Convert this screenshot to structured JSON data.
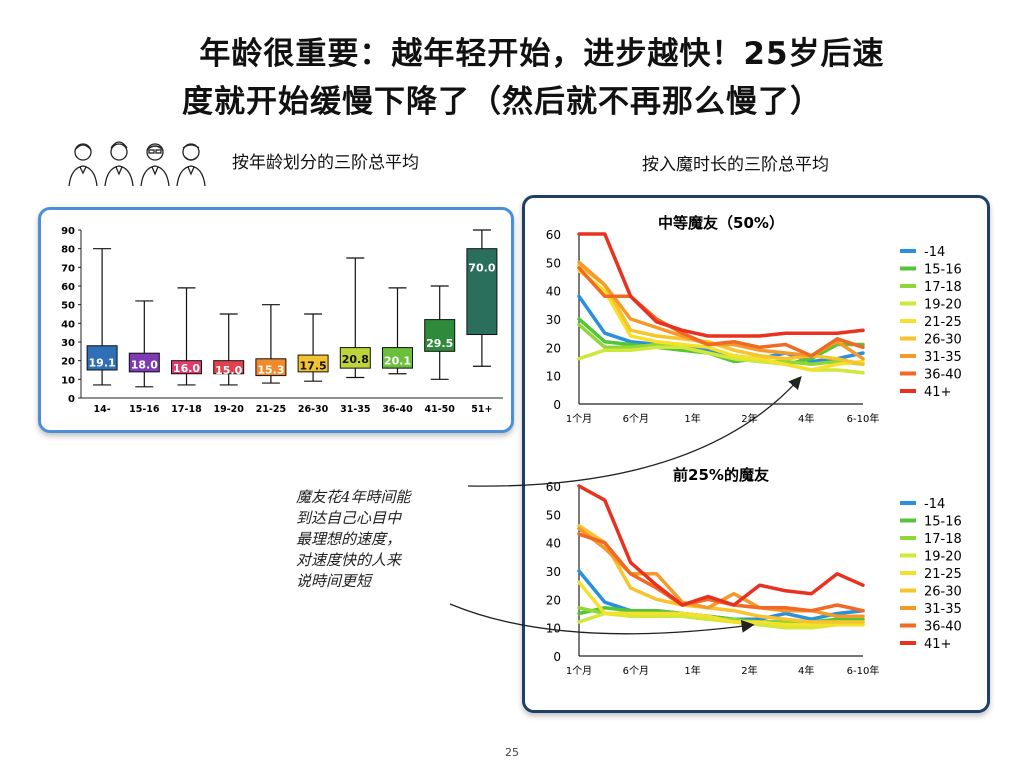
{
  "title": {
    "line1": "年龄很重要：越年轻开始，进步越快！25岁后速",
    "line2": "度就开始缓慢下降了（然后就不再那么慢了）"
  },
  "left_heading": "按年龄划分的三阶总平均",
  "right_heading": "按入魔时长的三阶总平均",
  "annotation": {
    "lines": [
      "魔友花4年時间能",
      "到达自己心目中",
      "最理想的速度，",
      "对速度快的人来",
      "说時间更短"
    ]
  },
  "page_number": "25",
  "chart_data": [
    {
      "type": "box",
      "title": "",
      "categories": [
        "14-",
        "15-16",
        "17-18",
        "19-20",
        "21-25",
        "26-30",
        "31-35",
        "36-40",
        "41-50",
        "51+"
      ],
      "means": [
        19.1,
        18.0,
        16.0,
        15.0,
        15.3,
        17.5,
        20.8,
        20.1,
        29.5,
        70.0
      ],
      "mean_labels": [
        "19.1",
        "18.0",
        "16.0",
        "15.0",
        "15.3",
        "17.5",
        "20.8",
        "20.1",
        "29.5",
        "70.0"
      ],
      "whisker_low": [
        7,
        6,
        7,
        7,
        8,
        9,
        11,
        13,
        10,
        17
      ],
      "box_low": [
        15,
        14,
        13,
        13,
        12,
        14,
        16,
        16,
        25,
        34
      ],
      "box_high": [
        28,
        24,
        20,
        20,
        21,
        23,
        27,
        27,
        42,
        80
      ],
      "whisker_high": [
        80,
        52,
        59,
        45,
        50,
        45,
        75,
        59,
        60,
        90
      ],
      "box_colors": [
        "#2f6fb5",
        "#7e3bb3",
        "#e23b6b",
        "#e2414d",
        "#f08a2a",
        "#f2c230",
        "#bdd43a",
        "#6cbf3a",
        "#2e8b3a",
        "#2a6e5c"
      ],
      "ylim": [
        0,
        90
      ],
      "yticks": [
        0,
        10,
        20,
        30,
        40,
        50,
        60,
        70,
        80,
        90
      ],
      "grid": false
    },
    {
      "type": "line",
      "title": "中等魔友（50%）",
      "x_tick_labels": [
        "1个月",
        "6个月",
        "1年",
        "2年",
        "4年",
        "6-10年"
      ],
      "ylim": [
        0,
        60
      ],
      "yticks": [
        0,
        10,
        20,
        30,
        40,
        50,
        60
      ],
      "legend": "right",
      "series": [
        {
          "name": "-14",
          "color": "#2b8fe0",
          "values": [
            38,
            25,
            22,
            21,
            20,
            19,
            17,
            16,
            18,
            15,
            16,
            18
          ]
        },
        {
          "name": "15-16",
          "color": "#55c43a",
          "values": [
            30,
            22,
            21,
            20,
            19,
            18,
            15,
            16,
            14,
            16,
            21,
            21
          ]
        },
        {
          "name": "17-18",
          "color": "#8fd637",
          "values": [
            28,
            20,
            20,
            21,
            20,
            18,
            16,
            15,
            15,
            14,
            15,
            14
          ]
        },
        {
          "name": "19-20",
          "color": "#cfe83a",
          "values": [
            16,
            19,
            19,
            20,
            20,
            18,
            16,
            15,
            14,
            12,
            12,
            11
          ]
        },
        {
          "name": "21-25",
          "color": "#f7e02a",
          "values": [
            47,
            40,
            24,
            22,
            21,
            20,
            17,
            16,
            14,
            12,
            14,
            15
          ]
        },
        {
          "name": "26-30",
          "color": "#f8c32c",
          "values": [
            49,
            42,
            26,
            24,
            23,
            22,
            19,
            17,
            16,
            17,
            16,
            14
          ]
        },
        {
          "name": "31-35",
          "color": "#f59a2a",
          "values": [
            50,
            42,
            30,
            27,
            24,
            21,
            21,
            19,
            18,
            17,
            22,
            16
          ]
        },
        {
          "name": "36-40",
          "color": "#f06a26",
          "values": [
            48,
            38,
            38,
            30,
            25,
            21,
            22,
            20,
            21,
            17,
            23,
            20
          ]
        },
        {
          "name": "41+",
          "color": "#e8321f",
          "values": [
            60,
            60,
            38,
            29,
            26,
            24,
            24,
            24,
            25,
            25,
            25,
            26
          ]
        }
      ]
    },
    {
      "type": "line",
      "title": "前25%的魔友",
      "x_tick_labels": [
        "1个月",
        "6个月",
        "1年",
        "2年",
        "4年",
        "6-10年"
      ],
      "ylim": [
        0,
        60
      ],
      "yticks": [
        0,
        10,
        20,
        30,
        40,
        50,
        60
      ],
      "legend": "right",
      "series": [
        {
          "name": "-14",
          "color": "#2b8fe0",
          "values": [
            30,
            19,
            16,
            16,
            15,
            14,
            13,
            13,
            15,
            13,
            15,
            16
          ]
        },
        {
          "name": "15-16",
          "color": "#55c43a",
          "values": [
            15,
            17,
            16,
            16,
            15,
            14,
            13,
            12,
            12,
            12,
            13,
            13
          ]
        },
        {
          "name": "17-18",
          "color": "#8fd637",
          "values": [
            17,
            15,
            15,
            15,
            14,
            13,
            13,
            11,
            12,
            11,
            12,
            12
          ]
        },
        {
          "name": "19-20",
          "color": "#cfe83a",
          "values": [
            12,
            15,
            14,
            14,
            14,
            13,
            12,
            11,
            10,
            10,
            11,
            11
          ]
        },
        {
          "name": "21-25",
          "color": "#f7e02a",
          "values": [
            26,
            15,
            15,
            15,
            15,
            14,
            12,
            12,
            11,
            11,
            11,
            11
          ]
        },
        {
          "name": "26-30",
          "color": "#f8c32c",
          "values": [
            46,
            40,
            24,
            20,
            18,
            17,
            16,
            14,
            13,
            12,
            12,
            12
          ]
        },
        {
          "name": "31-35",
          "color": "#f59a2a",
          "values": [
            45,
            38,
            29,
            29,
            19,
            17,
            22,
            17,
            16,
            16,
            14,
            14
          ]
        },
        {
          "name": "36-40",
          "color": "#f06a26",
          "values": [
            43,
            40,
            29,
            24,
            18,
            20,
            18,
            17,
            17,
            16,
            18,
            16
          ]
        },
        {
          "name": "41+",
          "color": "#e8321f",
          "values": [
            60,
            55,
            33,
            25,
            18,
            21,
            18,
            25,
            23,
            22,
            29,
            25
          ]
        }
      ]
    }
  ]
}
